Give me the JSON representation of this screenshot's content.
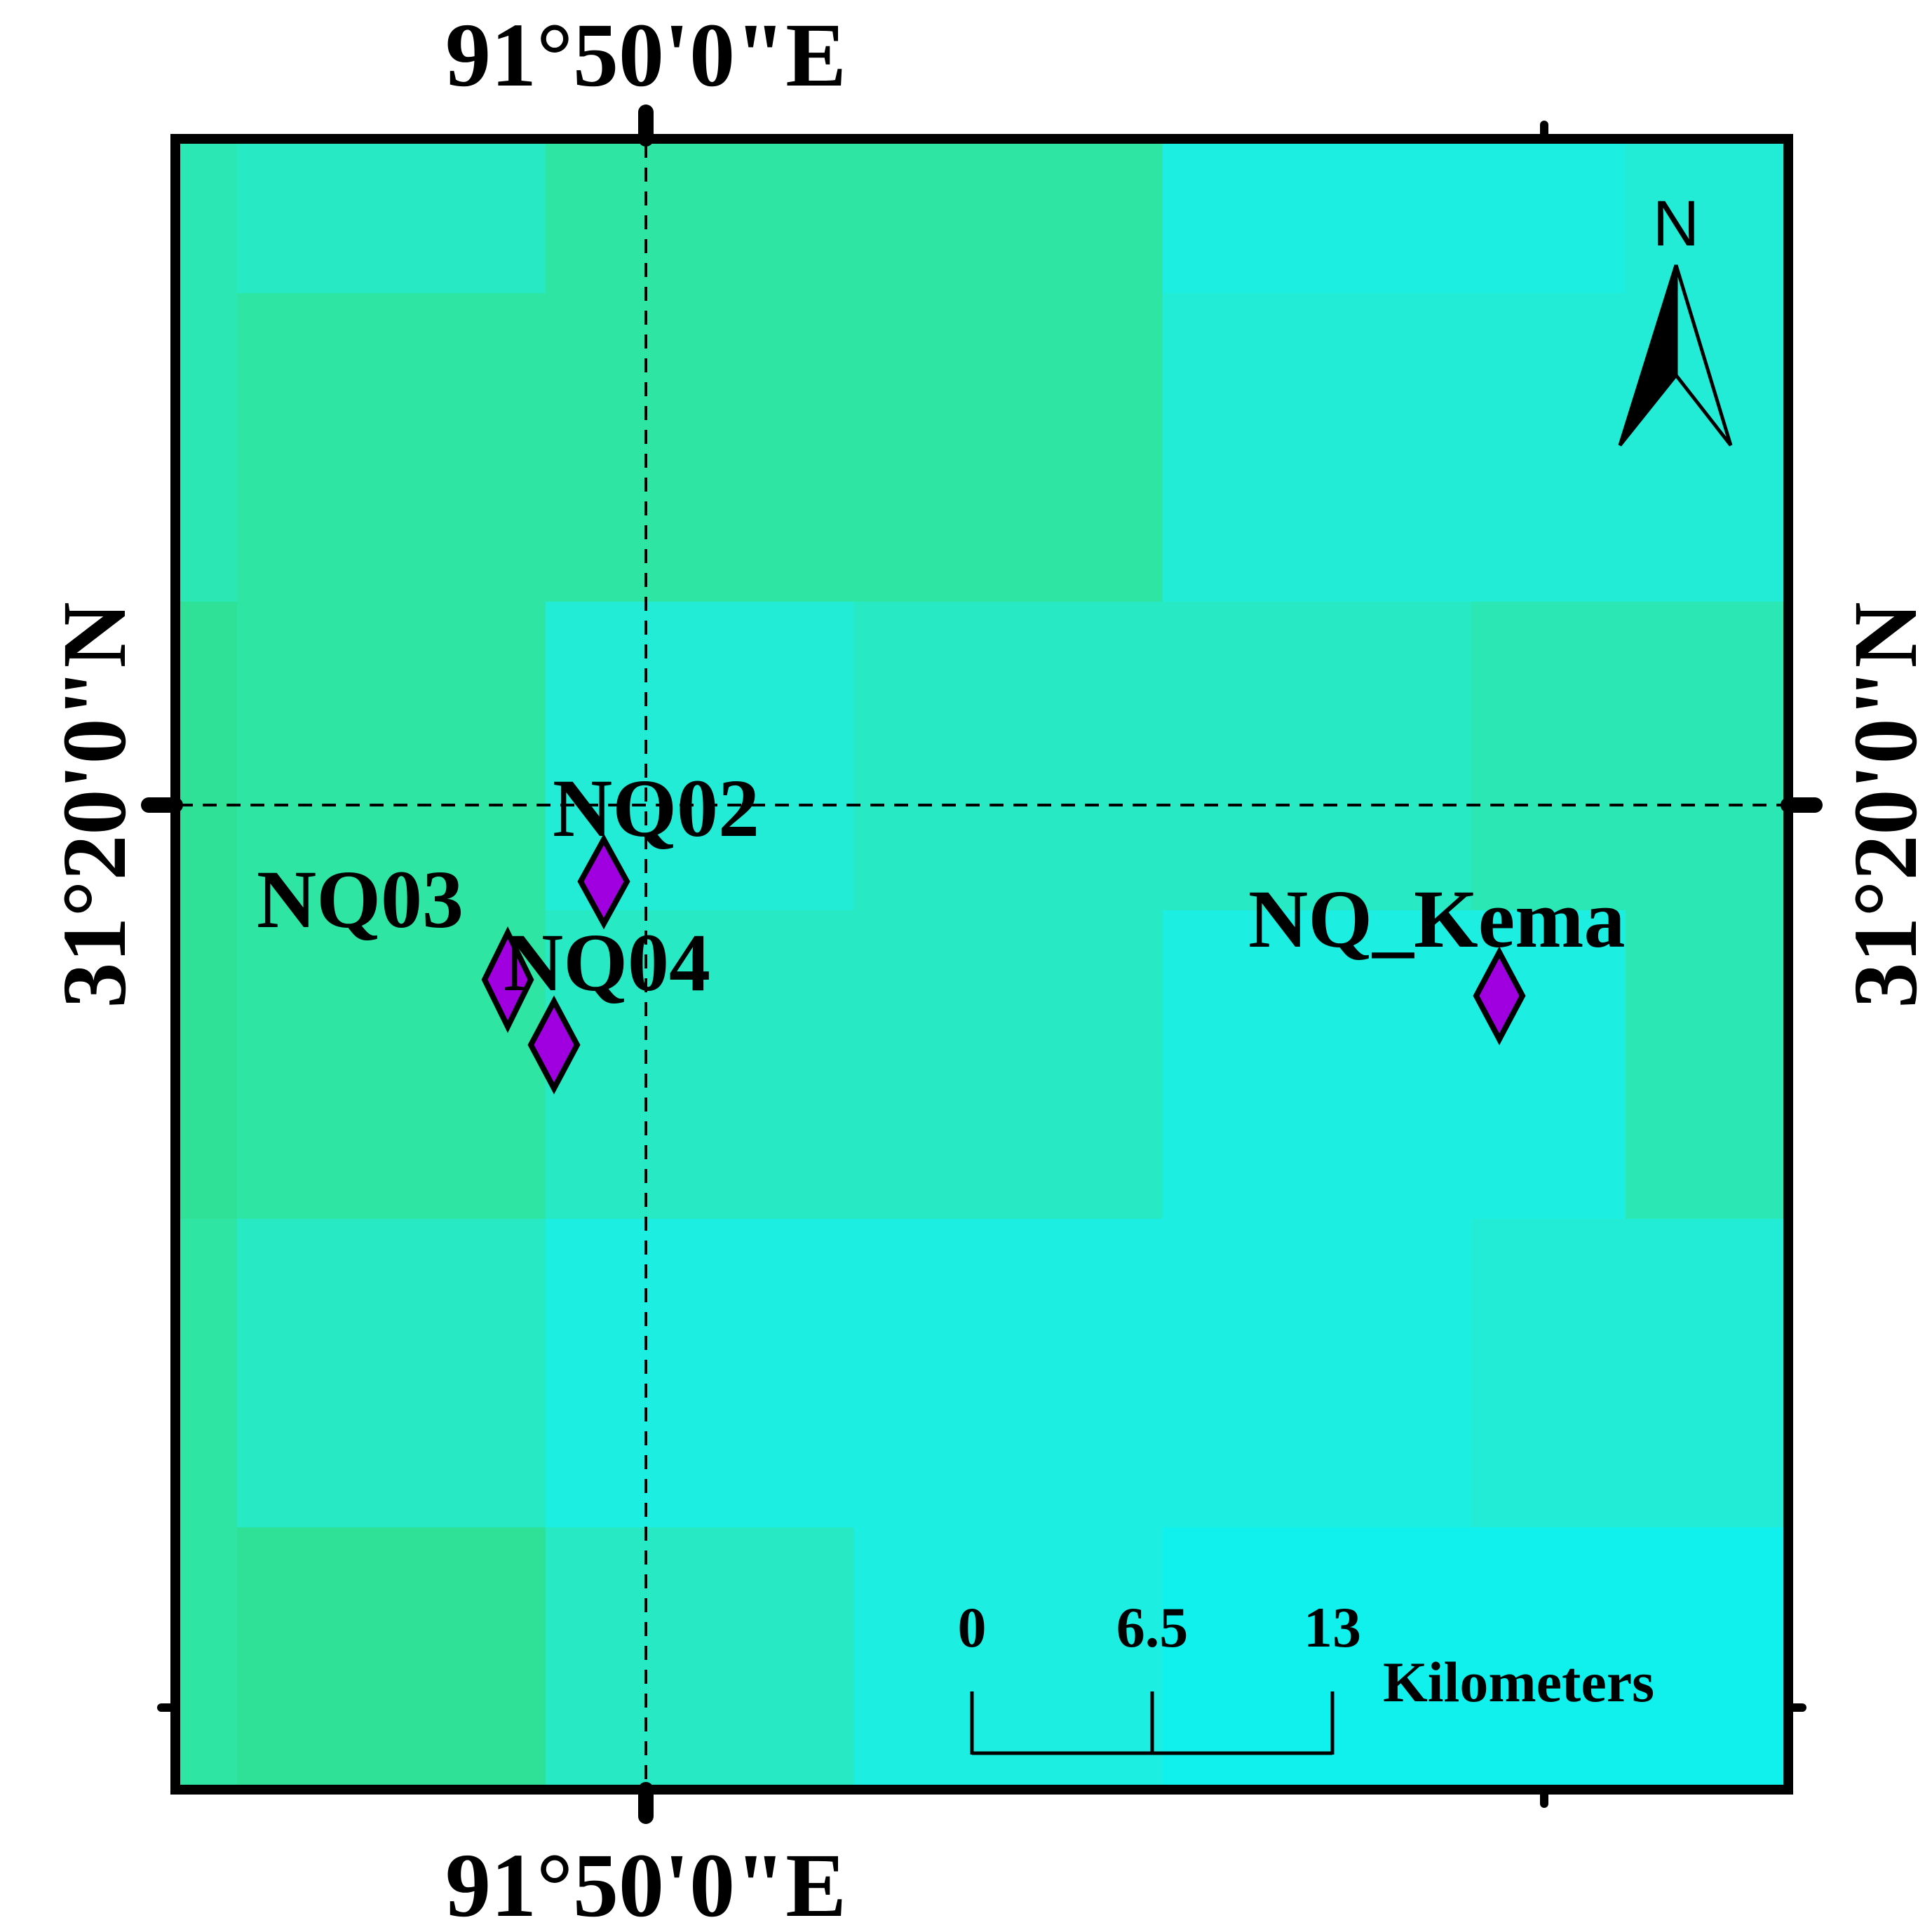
{
  "map": {
    "graticule": {
      "longitude_label": "91°50'0\"E",
      "latitude_label": "31°20'0\"N"
    },
    "raster": {
      "palette": [
        "#27dc7c",
        "#2ee196",
        "#2ee5a4",
        "#2ae7b4",
        "#27e9c4",
        "#22ecd6",
        "#1ceee2",
        "#10f0ec"
      ],
      "grid_classes": [
        [
          3,
          4,
          4,
          2,
          2,
          2,
          6,
          6,
          5
        ],
        [
          3,
          2,
          2,
          2,
          2,
          2,
          5,
          5,
          5
        ],
        [
          1,
          2,
          2,
          5,
          5,
          4,
          4,
          3,
          3
        ],
        [
          1,
          2,
          2,
          4,
          4,
          4,
          6,
          6,
          3
        ],
        [
          2,
          4,
          4,
          6,
          6,
          6,
          6,
          5,
          5
        ],
        [
          2,
          1,
          1,
          4,
          4,
          6,
          7,
          7,
          7
        ]
      ]
    },
    "sites": [
      {
        "name": "NQ02",
        "label": "NQ02"
      },
      {
        "name": "NQ03",
        "label": "NQ03"
      },
      {
        "name": "NQ04",
        "label": "NQ04"
      },
      {
        "name": "NQ_Kema",
        "label": "NQ_Kema"
      }
    ],
    "marker_color": "#a000e0",
    "north_arrow": {
      "label": "N"
    },
    "scale_bar": {
      "ticks": [
        "0",
        "6.5",
        "13"
      ],
      "unit": "Kilometers"
    }
  }
}
